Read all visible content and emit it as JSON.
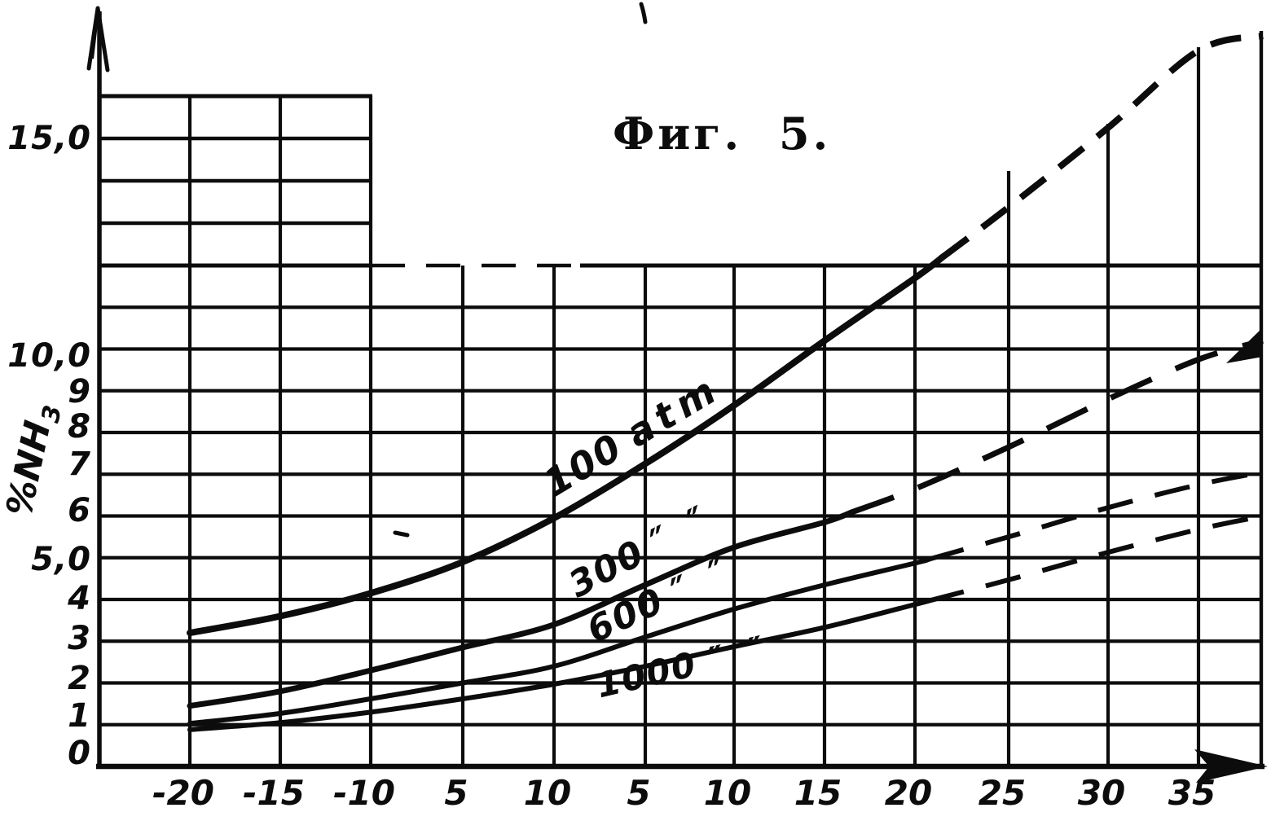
{
  "figure": {
    "title": "Фиг. 5."
  },
  "chart_data": {
    "type": "line",
    "title": "Фиг. 5.",
    "ylabel": "%NH3",
    "ylabel_main": "%NH",
    "ylabel_sub": "3",
    "xlabel": "",
    "grid": true,
    "ylim": [
      0,
      17.5
    ],
    "y_tick_labels": [
      "15,0",
      "10,0",
      "9",
      "8",
      "7",
      "6",
      "5,0",
      "4",
      "3",
      "2",
      "1",
      "0"
    ],
    "x_tick_labels": [
      "-20",
      "-15",
      "-10",
      "5",
      "10",
      "5",
      "10",
      "15",
      "20",
      "25",
      "30",
      "35"
    ],
    "series": [
      {
        "name": "100 atm",
        "label": "100",
        "unit": "atm",
        "values": [
          3.2,
          3.6,
          4.15,
          4.9,
          5.95,
          7.25,
          8.65,
          10.2,
          11.7,
          13.4,
          15.3,
          17.15
        ],
        "tail_value": 17.5,
        "solid_until_col": 8.3,
        "line_style": "solid then dashed"
      },
      {
        "name": "300 ″ ″",
        "label": "300",
        "unit": "″ ″",
        "values": [
          1.45,
          1.8,
          2.3,
          2.85,
          3.4,
          4.35,
          5.25,
          5.85,
          6.65,
          7.65,
          8.8,
          9.75
        ],
        "tail_value": 10.2,
        "solid_until_col": 7.3,
        "line_style": "solid then dashed",
        "end_marker": "thick-arrow-blob"
      },
      {
        "name": "600 ″ ″",
        "label": "600",
        "unit": "″ ″",
        "values": [
          1.03,
          1.27,
          1.62,
          2.0,
          2.4,
          3.1,
          3.77,
          4.35,
          4.87,
          5.5,
          6.2,
          6.75
        ],
        "tail_value": 7.05,
        "solid_until_col": 8.15,
        "line_style": "solid then dashed"
      },
      {
        "name": "1000 ″ ″",
        "label": "1000",
        "unit": "″ ″",
        "values": [
          0.88,
          1.05,
          1.3,
          1.62,
          1.97,
          2.4,
          2.87,
          3.33,
          3.88,
          4.47,
          5.13,
          5.68
        ],
        "tail_value": 6.0,
        "solid_until_col": 8.15,
        "line_style": "solid then dashed"
      }
    ],
    "ink_color": "#0c0c0c",
    "background_color": "#ffffff"
  }
}
